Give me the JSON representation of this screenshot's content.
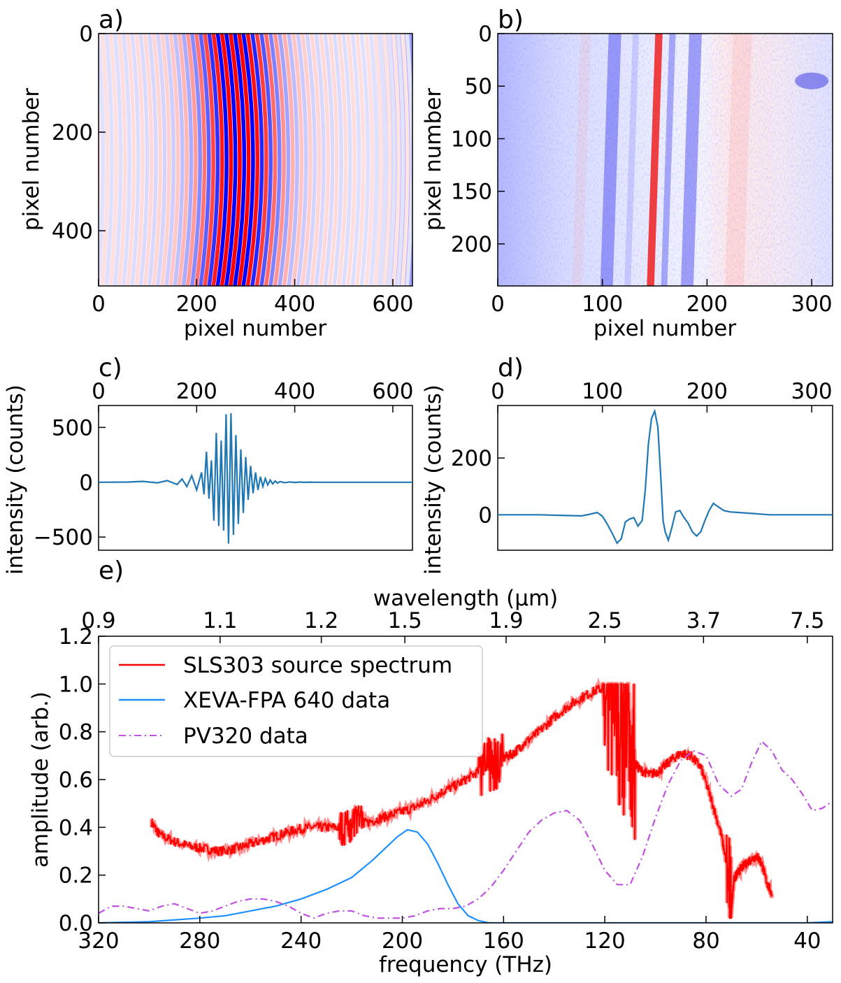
{
  "panel_labels": {
    "a": "a)",
    "b": "b)",
    "c": "c)",
    "d": "d)",
    "e": "e)"
  },
  "chart_data": [
    {
      "id": "a",
      "type": "heatmap",
      "xlabel": "pixel number",
      "ylabel": "pixel number",
      "xlim": [
        0,
        640
      ],
      "ylim": [
        512,
        0
      ],
      "xticks": [
        0,
        200,
        400,
        600
      ],
      "yticks": [
        0,
        200,
        400
      ],
      "colormap": "bwr",
      "colors": {
        "low": "#0000ff",
        "mid": "#ffffff",
        "high": "#ff0000"
      }
    },
    {
      "id": "b",
      "type": "heatmap",
      "xlabel": "pixel number",
      "ylabel": "pixel number",
      "xlim": [
        0,
        320
      ],
      "ylim": [
        240,
        0
      ],
      "xticks": [
        0,
        100,
        200,
        300
      ],
      "yticks": [
        0,
        50,
        100,
        150,
        200
      ],
      "colormap": "bwr",
      "colors": {
        "low": "#0000ff",
        "mid": "#ffffff",
        "high": "#ff0000"
      }
    },
    {
      "id": "c",
      "type": "line",
      "ylabel": "intensity (counts)",
      "xlim": [
        0,
        640
      ],
      "ylim": [
        -620,
        700
      ],
      "xticks": [
        0,
        200,
        400,
        600
      ],
      "yticks": [
        -500,
        0,
        500
      ],
      "tick_labels_x": [
        "0",
        "200",
        "400",
        "600"
      ],
      "tick_labels_y": [
        "−500",
        "0",
        "500"
      ],
      "color": "#1f77b4",
      "series": [
        {
          "x": [
            0,
            60,
            90,
            120,
            140,
            160,
            170,
            180,
            190,
            200,
            210,
            215,
            220,
            225,
            230,
            235,
            240,
            245,
            250,
            255,
            260,
            265,
            270,
            275,
            280,
            285,
            290,
            295,
            300,
            305,
            310,
            315,
            320,
            325,
            330,
            335,
            340,
            345,
            350,
            355,
            360,
            365,
            370,
            380,
            390,
            400,
            410,
            420,
            430,
            440,
            460,
            500,
            560,
            640
          ],
          "y": [
            0,
            2,
            8,
            -5,
            15,
            -20,
            30,
            -40,
            60,
            -70,
            90,
            -110,
            280,
            -150,
            200,
            -350,
            450,
            -400,
            380,
            -440,
            620,
            -560,
            630,
            -480,
            430,
            -380,
            300,
            -280,
            230,
            -160,
            150,
            -100,
            90,
            -70,
            50,
            -40,
            35,
            -25,
            20,
            -15,
            12,
            -8,
            6,
            -4,
            3,
            -2,
            2,
            -1,
            1,
            0,
            0,
            0,
            0,
            0
          ]
        }
      ]
    },
    {
      "id": "d",
      "type": "line",
      "ylabel": "intensity (counts)",
      "xlim": [
        0,
        320
      ],
      "ylim": [
        -125,
        385
      ],
      "xticks": [
        0,
        100,
        200,
        300
      ],
      "yticks": [
        0,
        200
      ],
      "tick_labels_x": [
        "0",
        "100",
        "200",
        "300"
      ],
      "tick_labels_y": [
        "0",
        "200"
      ],
      "color": "#1f77b4",
      "series": [
        {
          "x": [
            0,
            40,
            60,
            80,
            88,
            95,
            100,
            105,
            110,
            114,
            118,
            122,
            126,
            130,
            134,
            138,
            141,
            144,
            147,
            150,
            153,
            156,
            158,
            160,
            163,
            166,
            170,
            174,
            178,
            182,
            186,
            190,
            194,
            198,
            202,
            206,
            210,
            216,
            222,
            230,
            245,
            260,
            290,
            320
          ],
          "y": [
            0,
            0,
            -2,
            -4,
            2,
            8,
            -5,
            -35,
            -70,
            -100,
            -85,
            -25,
            -15,
            -10,
            -40,
            -20,
            90,
            250,
            340,
            365,
            310,
            120,
            -20,
            -60,
            -90,
            -50,
            10,
            15,
            -10,
            -30,
            -60,
            -75,
            -60,
            -20,
            15,
            40,
            30,
            15,
            10,
            8,
            4,
            0,
            0,
            0
          ]
        }
      ]
    },
    {
      "id": "e",
      "type": "line",
      "xlabel": "frequency (THz)",
      "x2label": "wavelength (μm)",
      "ylabel": "amplitude (arb.)",
      "xlim": [
        320,
        30
      ],
      "ylim": [
        0,
        1.2
      ],
      "xticks": [
        320,
        280,
        240,
        200,
        160,
        120,
        80,
        40
      ],
      "yticks": [
        0.0,
        0.2,
        0.4,
        0.6,
        0.8,
        1.0,
        1.2
      ],
      "tick_labels_y": [
        "0.0",
        "0.2",
        "0.4",
        "0.6",
        "0.8",
        "1.0",
        "1.2"
      ],
      "top_ticks": {
        "positions_thz": [
          320,
          272,
          232,
          199,
          159,
          120,
          81,
          40
        ],
        "labels": [
          "0.9",
          "1.1",
          "1.2",
          "1.5",
          "1.9",
          "2.5",
          "3.7",
          "7.5"
        ]
      },
      "legend": {
        "position": "top-left"
      },
      "series": [
        {
          "name": "SLS303 source spectrum",
          "color": "#ff0000",
          "noisy": true,
          "x": [
            299,
            296,
            290,
            284,
            278,
            272,
            266,
            260,
            254,
            248,
            242,
            236,
            230,
            224,
            220,
            214,
            208,
            202,
            196,
            190,
            184,
            178,
            172,
            166,
            160,
            156,
            152,
            146,
            140,
            134,
            128,
            122,
            118,
            115,
            112,
            109,
            106,
            102,
            98,
            94,
            90,
            86,
            82,
            78,
            74,
            71,
            70,
            69,
            68,
            66,
            63,
            60,
            58,
            56,
            54
          ],
          "y": [
            0.42,
            0.37,
            0.34,
            0.32,
            0.31,
            0.3,
            0.31,
            0.33,
            0.35,
            0.37,
            0.39,
            0.4,
            0.4,
            0.4,
            0.41,
            0.42,
            0.44,
            0.46,
            0.48,
            0.51,
            0.55,
            0.58,
            0.62,
            0.66,
            0.69,
            0.71,
            0.75,
            0.8,
            0.86,
            0.91,
            0.95,
            0.98,
            0.97,
            0.85,
            0.75,
            0.68,
            0.64,
            0.62,
            0.64,
            0.68,
            0.71,
            0.7,
            0.65,
            0.52,
            0.37,
            0.2,
            0.05,
            0.18,
            0.2,
            0.23,
            0.26,
            0.28,
            0.25,
            0.17,
            0.12
          ]
        },
        {
          "name": "XEVA-FPA 640 data",
          "color": "#1e90ff",
          "x": [
            320,
            300,
            280,
            270,
            260,
            250,
            240,
            230,
            220,
            212,
            206,
            202,
            198,
            194,
            190,
            186,
            182,
            178,
            174,
            170,
            166,
            160,
            140,
            120,
            100,
            80,
            60,
            40,
            30
          ],
          "y": [
            0,
            0.005,
            0.02,
            0.03,
            0.05,
            0.07,
            0.1,
            0.14,
            0.19,
            0.26,
            0.32,
            0.36,
            0.39,
            0.38,
            0.33,
            0.25,
            0.16,
            0.08,
            0.03,
            0.01,
            0,
            0,
            0,
            0,
            0,
            0,
            0,
            0,
            0.005
          ]
        },
        {
          "name": "PV320 data",
          "color": "#c050e0",
          "dash": "10,5,2,5",
          "x": [
            320,
            315,
            310,
            305,
            300,
            295,
            290,
            285,
            280,
            275,
            270,
            265,
            260,
            255,
            250,
            245,
            240,
            235,
            230,
            225,
            220,
            215,
            210,
            205,
            200,
            195,
            190,
            185,
            180,
            175,
            170,
            165,
            160,
            155,
            150,
            145,
            140,
            135,
            130,
            125,
            120,
            115,
            110,
            105,
            100,
            95,
            90,
            85,
            80,
            75,
            70,
            66,
            62,
            58,
            54,
            50,
            46,
            42,
            38,
            34,
            30
          ],
          "y": [
            0.04,
            0.07,
            0.07,
            0.06,
            0.05,
            0.07,
            0.08,
            0.06,
            0.04,
            0.05,
            0.07,
            0.09,
            0.1,
            0.1,
            0.09,
            0.07,
            0.04,
            0.02,
            0.04,
            0.05,
            0.05,
            0.03,
            0.02,
            0.02,
            0.02,
            0.03,
            0.05,
            0.06,
            0.06,
            0.07,
            0.1,
            0.15,
            0.22,
            0.3,
            0.38,
            0.43,
            0.46,
            0.47,
            0.43,
            0.33,
            0.22,
            0.16,
            0.16,
            0.28,
            0.44,
            0.58,
            0.68,
            0.72,
            0.7,
            0.58,
            0.53,
            0.56,
            0.67,
            0.76,
            0.72,
            0.64,
            0.6,
            0.54,
            0.47,
            0.48,
            0.51
          ]
        }
      ]
    }
  ]
}
